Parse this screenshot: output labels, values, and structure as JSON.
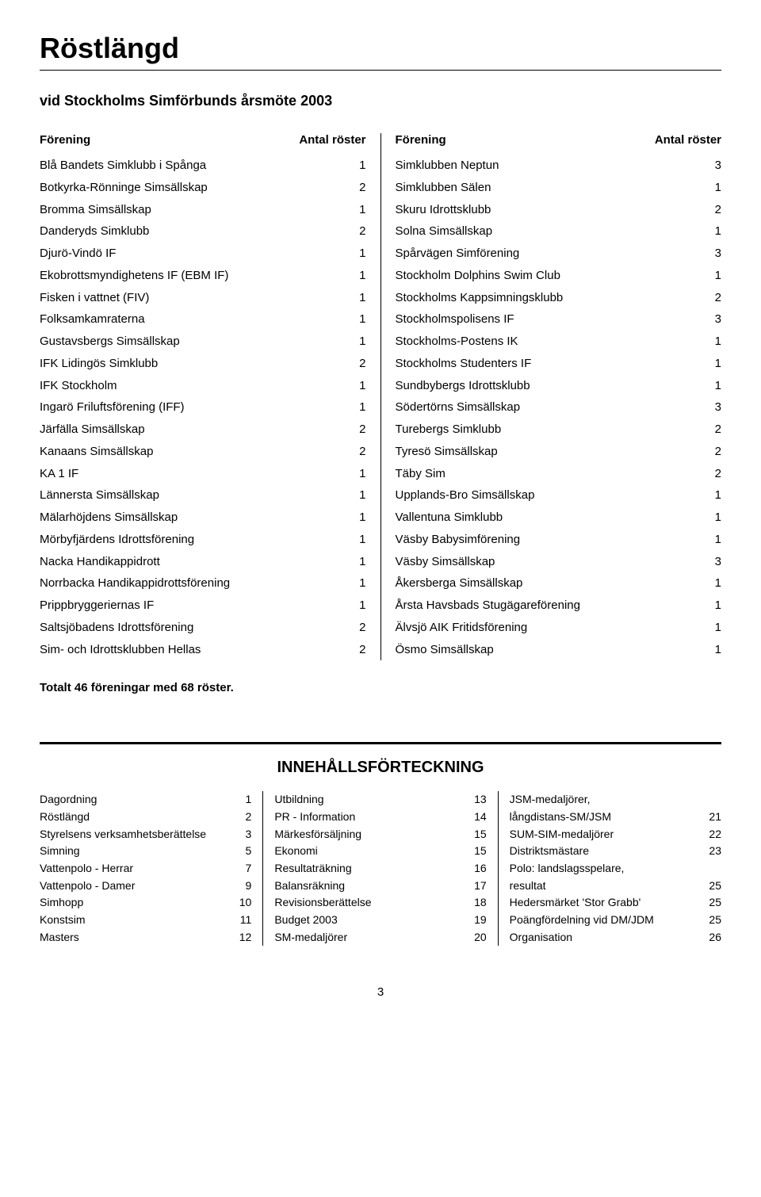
{
  "title": "Röstlängd",
  "subtitle": "vid Stockholms Simförbunds årsmöte 2003",
  "headers": {
    "club": "Förening",
    "votes": "Antal röster"
  },
  "leftColumn": [
    {
      "name": "Blå Bandets Simklubb i Spånga",
      "votes": 1
    },
    {
      "name": "Botkyrka-Rönninge Simsällskap",
      "votes": 2
    },
    {
      "name": "Bromma Simsällskap",
      "votes": 1
    },
    {
      "name": "Danderyds Simklubb",
      "votes": 2
    },
    {
      "name": "Djurö-Vindö IF",
      "votes": 1
    },
    {
      "name": "Ekobrottsmyndighetens IF (EBM IF)",
      "votes": 1
    },
    {
      "name": "Fisken i vattnet (FIV)",
      "votes": 1
    },
    {
      "name": "Folksamkamraterna",
      "votes": 1
    },
    {
      "name": "Gustavsbergs Simsällskap",
      "votes": 1
    },
    {
      "name": "IFK Lidingös Simklubb",
      "votes": 2
    },
    {
      "name": "IFK Stockholm",
      "votes": 1
    },
    {
      "name": "Ingarö Friluftsförening (IFF)",
      "votes": 1
    },
    {
      "name": "Järfälla Simsällskap",
      "votes": 2
    },
    {
      "name": "Kanaans Simsällskap",
      "votes": 2
    },
    {
      "name": "KA 1 IF",
      "votes": 1
    },
    {
      "name": "Lännersta Simsällskap",
      "votes": 1
    },
    {
      "name": "Mälarhöjdens Simsällskap",
      "votes": 1
    },
    {
      "name": "Mörbyfjärdens Idrottsförening",
      "votes": 1
    },
    {
      "name": "Nacka Handikappidrott",
      "votes": 1
    },
    {
      "name": "Norrbacka Handikappidrottsförening",
      "votes": 1
    },
    {
      "name": "Prippbryggeriernas IF",
      "votes": 1
    },
    {
      "name": "Saltsjöbadens Idrottsförening",
      "votes": 2
    },
    {
      "name": "Sim- och Idrottsklubben Hellas",
      "votes": 2
    }
  ],
  "rightColumn": [
    {
      "name": "Simklubben Neptun",
      "votes": 3
    },
    {
      "name": "Simklubben Sälen",
      "votes": 1
    },
    {
      "name": "Skuru Idrottsklubb",
      "votes": 2
    },
    {
      "name": "Solna Simsällskap",
      "votes": 1
    },
    {
      "name": "Spårvägen Simförening",
      "votes": 3
    },
    {
      "name": "Stockholm Dolphins Swim Club",
      "votes": 1
    },
    {
      "name": "Stockholms Kappsimningsklubb",
      "votes": 2
    },
    {
      "name": "Stockholmspolisens IF",
      "votes": 3
    },
    {
      "name": "Stockholms-Postens IK",
      "votes": 1
    },
    {
      "name": "Stockholms Studenters IF",
      "votes": 1
    },
    {
      "name": "Sundbybergs Idrottsklubb",
      "votes": 1
    },
    {
      "name": "Södertörns Simsällskap",
      "votes": 3
    },
    {
      "name": "Turebergs Simklubb",
      "votes": 2
    },
    {
      "name": "Tyresö Simsällskap",
      "votes": 2
    },
    {
      "name": "Täby Sim",
      "votes": 2
    },
    {
      "name": "Upplands-Bro Simsällskap",
      "votes": 1
    },
    {
      "name": "Vallentuna Simklubb",
      "votes": 1
    },
    {
      "name": "Väsby Babysimförening",
      "votes": 1
    },
    {
      "name": "Väsby Simsällskap",
      "votes": 3
    },
    {
      "name": "Åkersberga Simsällskap",
      "votes": 1
    },
    {
      "name": "Årsta Havsbads Stugägareförening",
      "votes": 1
    },
    {
      "name": "Älvsjö AIK Fritidsförening",
      "votes": 1
    },
    {
      "name": "Ösmo Simsällskap",
      "votes": 1
    }
  ],
  "totalLine": "Totalt 46 föreningar med 68 röster.",
  "tocTitle": "INNEHÅLLSFÖRTECKNING",
  "toc1": [
    {
      "name": "Dagordning",
      "page": 1
    },
    {
      "name": "Röstlängd",
      "page": 2
    },
    {
      "name": "Styrelsens verksamhetsberättelse",
      "page": 3
    },
    {
      "name": "Simning",
      "page": 5
    },
    {
      "name": "Vattenpolo - Herrar",
      "page": 7
    },
    {
      "name": "Vattenpolo - Damer",
      "page": 9
    },
    {
      "name": "Simhopp",
      "page": 10
    },
    {
      "name": "Konstsim",
      "page": 11
    },
    {
      "name": "Masters",
      "page": 12
    }
  ],
  "toc2": [
    {
      "name": "Utbildning",
      "page": 13
    },
    {
      "name": "PR  -  Information",
      "page": 14
    },
    {
      "name": "Märkesförsäljning",
      "page": 15
    },
    {
      "name": "Ekonomi",
      "page": 15
    },
    {
      "name": "Resultaträkning",
      "page": 16
    },
    {
      "name": "Balansräkning",
      "page": 17
    },
    {
      "name": "Revisionsberättelse",
      "page": 18
    },
    {
      "name": "Budget 2003",
      "page": 19
    },
    {
      "name": "SM-medaljörer",
      "page": 20
    }
  ],
  "toc3": [
    {
      "name": "JSM-medaljörer,",
      "page": ""
    },
    {
      "name": "långdistans-SM/JSM",
      "page": 21
    },
    {
      "name": "SUM-SIM-medaljörer",
      "page": 22
    },
    {
      "name": "Distriktsmästare",
      "page": 23
    },
    {
      "name": "Polo: landslagsspelare,",
      "page": ""
    },
    {
      "name": "resultat",
      "page": 25
    },
    {
      "name": "Hedersmärket 'Stor Grabb'",
      "page": 25
    },
    {
      "name": "Poängfördelning vid DM/JDM",
      "page": 25
    },
    {
      "name": "Organisation",
      "page": 26
    }
  ],
  "pageNumber": "3"
}
